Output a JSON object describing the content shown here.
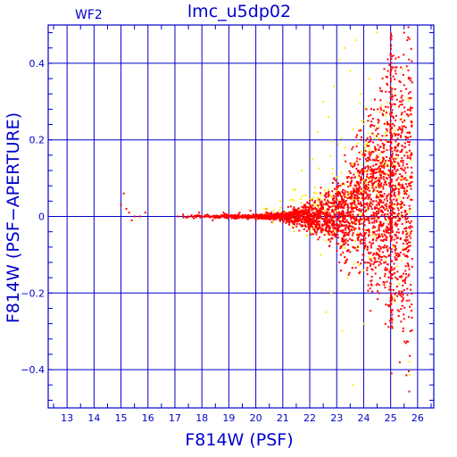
{
  "chart_data": {
    "type": "scatter",
    "title": "lmc_u5dp02",
    "panel_label": "WF2",
    "xlabel": "F814W (PSF)",
    "ylabel": "F814W (PSF−APERTURE)",
    "xlim": [
      12.3,
      26.6
    ],
    "ylim": [
      -0.5,
      0.5
    ],
    "x_ticks": [
      13,
      14,
      15,
      16,
      17,
      18,
      19,
      20,
      21,
      22,
      23,
      24,
      25,
      26
    ],
    "y_ticks": [
      -0.4,
      -0.2,
      0,
      0.2,
      0.4
    ],
    "y_tick_labels": [
      "−0.4",
      "−0.2",
      "0",
      "0.2",
      "0.4"
    ],
    "grid": true,
    "colors": {
      "axes": "#0000cc",
      "red_series": "#ff0000",
      "yellow_series": "#ffee00",
      "background": "#ffffff"
    },
    "series": [
      {
        "color": "red",
        "values_description_free": true,
        "points": [
          [
            15.0,
            0.03
          ],
          [
            15.2,
            0.02
          ],
          [
            15.3,
            0.01
          ],
          [
            15.4,
            -0.01
          ],
          [
            15.5,
            0.0
          ],
          [
            15.9,
            0.01
          ],
          [
            15.1,
            0.06
          ],
          [
            15.7,
            0.0
          ],
          [
            17.1,
            0.0
          ],
          [
            17.3,
            0.005
          ],
          [
            17.5,
            0.0
          ],
          [
            17.7,
            -0.005
          ],
          [
            17.9,
            0.01
          ],
          [
            18.0,
            0.0
          ],
          [
            18.2,
            0.005
          ],
          [
            18.4,
            -0.01
          ],
          [
            18.6,
            0.0
          ],
          [
            18.8,
            0.01
          ],
          [
            19.0,
            0.0
          ],
          [
            19.2,
            -0.005
          ],
          [
            19.4,
            0.01
          ],
          [
            19.6,
            0.0
          ],
          [
            19.8,
            0.015
          ],
          [
            20.0,
            -0.01
          ],
          [
            20.2,
            0.005
          ],
          [
            20.4,
            0.02
          ],
          [
            20.6,
            -0.015
          ],
          [
            20.8,
            0.01
          ],
          [
            21.0,
            0.0
          ],
          [
            21.2,
            0.025
          ],
          [
            21.4,
            -0.02
          ],
          [
            21.6,
            0.01
          ],
          [
            21.8,
            0.03
          ],
          [
            22.0,
            -0.025
          ],
          [
            22.2,
            0.04
          ],
          [
            22.4,
            -0.03
          ],
          [
            22.6,
            0.05
          ],
          [
            22.8,
            -0.04
          ],
          [
            23.0,
            0.07
          ],
          [
            23.2,
            -0.06
          ],
          [
            23.4,
            0.09
          ],
          [
            23.6,
            -0.08
          ],
          [
            23.8,
            0.12
          ],
          [
            24.0,
            -0.1
          ],
          [
            24.2,
            0.15
          ],
          [
            24.4,
            -0.12
          ],
          [
            24.6,
            0.2
          ],
          [
            24.8,
            -0.15
          ],
          [
            25.0,
            0.25
          ],
          [
            25.2,
            -0.2
          ],
          [
            25.4,
            0.3
          ],
          [
            25.6,
            -0.22
          ],
          [
            25.8,
            0.35
          ],
          [
            25.1,
            0.42
          ],
          [
            25.3,
            -0.26
          ],
          [
            24.9,
            0.38
          ],
          [
            23.9,
            0.2
          ],
          [
            24.1,
            0.28
          ],
          [
            24.3,
            -0.18
          ],
          [
            22.9,
            0.1
          ],
          [
            23.1,
            -0.12
          ],
          [
            23.3,
            0.16
          ],
          [
            25.5,
            0.48
          ],
          [
            25.7,
            -0.05
          ]
        ]
      },
      {
        "color": "yellow",
        "points": [
          [
            20.3,
            0.02
          ],
          [
            20.9,
            0.04
          ],
          [
            21.4,
            0.07
          ],
          [
            21.7,
            0.12
          ],
          [
            22.1,
            0.15
          ],
          [
            22.3,
            0.22
          ],
          [
            22.5,
            0.3
          ],
          [
            22.7,
            0.26
          ],
          [
            22.9,
            0.34
          ],
          [
            23.1,
            0.41
          ],
          [
            23.3,
            0.44
          ],
          [
            23.5,
            0.38
          ],
          [
            23.7,
            0.46
          ],
          [
            23.9,
            0.32
          ],
          [
            24.2,
            0.36
          ],
          [
            24.5,
            0.48
          ],
          [
            22.4,
            -0.1
          ],
          [
            22.8,
            -0.2
          ],
          [
            23.2,
            -0.3
          ],
          [
            23.6,
            -0.44
          ],
          [
            21.9,
            -0.05
          ],
          [
            22.6,
            -0.25
          ],
          [
            23.4,
            -0.16
          ],
          [
            24.0,
            -0.28
          ]
        ]
      }
    ]
  }
}
